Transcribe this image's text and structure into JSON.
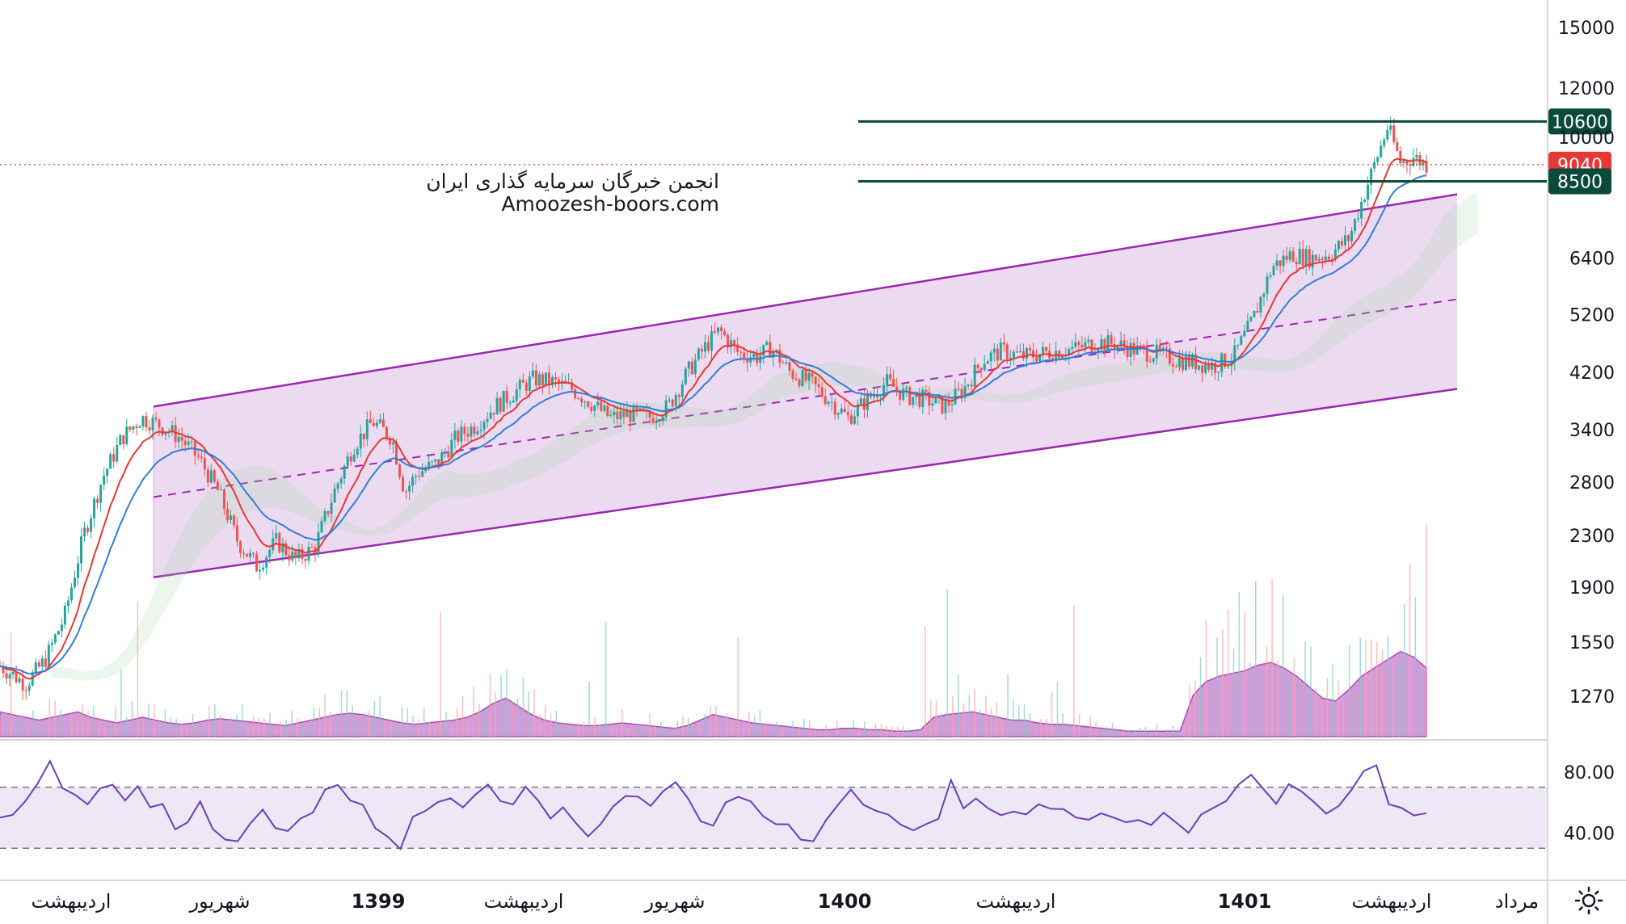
{
  "watermark": {
    "line1": "انجمن خبرگان سرمایه گذاری ایران",
    "line2": "Amoozesh-boors.com"
  },
  "icons": {
    "settings": "sun-settings-icon"
  },
  "colors": {
    "channel_fill": "#e9d3ee",
    "channel_line": "#9c27b0",
    "candle_up": "#26a69a",
    "candle_down": "#ef5350",
    "ma_fast": "#e53935",
    "ma_slow": "#2f7fd8",
    "level_line": "#0b4a3a",
    "price_line": "#e53935",
    "rsi_line": "#6a3fb5",
    "rsi_band": "#ede7f6",
    "volume_area": "#c679cd"
  },
  "chart_data": [
    {
      "type": "candlestick",
      "y_scale": "log",
      "y_ticks": [
        "15000",
        "12000",
        "10000",
        "6400",
        "5200",
        "4200",
        "3400",
        "2800",
        "2300",
        "1900",
        "1550",
        "1270"
      ],
      "x_labels": [
        "اردیبهشت",
        "شهریور",
        "1399",
        "اردیبهشت",
        "شهریور",
        "1400",
        "اردیبهشت",
        "1401",
        "اردیبهشت",
        "مرداد"
      ],
      "price_levels": [
        {
          "label": "10600",
          "value": 10600,
          "style": "horizontal-line"
        },
        {
          "label": "9040",
          "value": 9040,
          "style": "last-price"
        },
        {
          "label": "8500",
          "value": 8500,
          "style": "horizontal-line"
        }
      ],
      "channel": {
        "upper": [
          [
            0.0,
            3700
          ],
          [
            1.0,
            8100
          ]
        ],
        "mid": [
          [
            0.0,
            2650
          ],
          [
            1.0,
            5500
          ]
        ],
        "lower": [
          [
            0.0,
            1970
          ],
          [
            1.0,
            3950
          ]
        ]
      },
      "price_path": [
        [
          0.0,
          1420
        ],
        [
          0.02,
          1330
        ],
        [
          0.035,
          1450
        ],
        [
          0.05,
          1700
        ],
        [
          0.065,
          2300
        ],
        [
          0.08,
          2850
        ],
        [
          0.095,
          3300
        ],
        [
          0.11,
          3550
        ],
        [
          0.125,
          3450
        ],
        [
          0.14,
          3300
        ],
        [
          0.155,
          3050
        ],
        [
          0.17,
          2700
        ],
        [
          0.185,
          2250
        ],
        [
          0.2,
          2050
        ],
        [
          0.215,
          2250
        ],
        [
          0.23,
          2100
        ],
        [
          0.245,
          2200
        ],
        [
          0.26,
          2700
        ],
        [
          0.275,
          3200
        ],
        [
          0.29,
          3500
        ],
        [
          0.305,
          3300
        ],
        [
          0.315,
          2700
        ],
        [
          0.325,
          2900
        ],
        [
          0.34,
          3000
        ],
        [
          0.355,
          3300
        ],
        [
          0.37,
          3450
        ],
        [
          0.385,
          3700
        ],
        [
          0.4,
          3900
        ],
        [
          0.415,
          4100
        ],
        [
          0.43,
          4050
        ],
        [
          0.445,
          3950
        ],
        [
          0.46,
          3750
        ],
        [
          0.475,
          3550
        ],
        [
          0.49,
          3600
        ],
        [
          0.505,
          3550
        ],
        [
          0.52,
          3700
        ],
        [
          0.535,
          4200
        ],
        [
          0.55,
          4650
        ],
        [
          0.56,
          4900
        ],
        [
          0.575,
          4500
        ],
        [
          0.59,
          4450
        ],
        [
          0.6,
          4600
        ],
        [
          0.615,
          4200
        ],
        [
          0.63,
          4050
        ],
        [
          0.645,
          3800
        ],
        [
          0.66,
          3550
        ],
        [
          0.675,
          3800
        ],
        [
          0.69,
          4050
        ],
        [
          0.705,
          3850
        ],
        [
          0.72,
          3800
        ],
        [
          0.735,
          3700
        ],
        [
          0.75,
          3950
        ],
        [
          0.765,
          4400
        ],
        [
          0.78,
          4550
        ],
        [
          0.795,
          4450
        ],
        [
          0.81,
          4500
        ],
        [
          0.825,
          4550
        ],
        [
          0.84,
          4600
        ],
        [
          0.855,
          4700
        ],
        [
          0.87,
          4650
        ],
        [
          0.885,
          4550
        ],
        [
          0.9,
          4500
        ],
        [
          0.915,
          4400
        ],
        [
          0.93,
          4350
        ],
        [
          0.945,
          4300
        ],
        [
          0.96,
          4450
        ],
        [
          0.975,
          5100
        ],
        [
          0.99,
          6200
        ],
        [
          1.005,
          6500
        ],
        [
          1.02,
          6400
        ],
        [
          1.035,
          6500
        ],
        [
          1.05,
          6900
        ],
        [
          1.065,
          8500
        ],
        [
          1.08,
          10400
        ],
        [
          1.09,
          9100
        ],
        [
          1.1,
          9300
        ],
        [
          1.11,
          9040
        ]
      ]
    },
    {
      "type": "line",
      "name": "RSI",
      "y_ticks": [
        "80.00",
        "40.00"
      ],
      "bands": [
        70,
        30
      ],
      "values": [
        48,
        52,
        60,
        72,
        86,
        70,
        65,
        58,
        72,
        74,
        60,
        68,
        55,
        60,
        42,
        50,
        58,
        44,
        38,
        32,
        46,
        55,
        42,
        40,
        48,
        52,
        70,
        74,
        62,
        58,
        46,
        40,
        32,
        48,
        56,
        62,
        64,
        58,
        66,
        72,
        60,
        56,
        68,
        60,
        50,
        54,
        44,
        40,
        48,
        56,
        64,
        62,
        58,
        70,
        74,
        62,
        50,
        46,
        60,
        66,
        58,
        50,
        46,
        44,
        36,
        34,
        50,
        60,
        66,
        58,
        54,
        50,
        46,
        40,
        44,
        52,
        76,
        58,
        60,
        56,
        52,
        54,
        50,
        56,
        58,
        54,
        52,
        50,
        52,
        50,
        48,
        46,
        46,
        52,
        44,
        42,
        50,
        58,
        62,
        74,
        80,
        70,
        62,
        74,
        68,
        58,
        52,
        60,
        70,
        78,
        82,
        60,
        56,
        54,
        52
      ]
    },
    {
      "type": "area",
      "name": "Volume",
      "values": [
        18,
        16,
        14,
        12,
        14,
        16,
        18,
        14,
        12,
        10,
        12,
        14,
        12,
        10,
        9,
        10,
        12,
        13,
        12,
        11,
        10,
        9,
        8,
        10,
        12,
        14,
        16,
        17,
        16,
        14,
        12,
        10,
        9,
        10,
        11,
        12,
        14,
        18,
        24,
        28,
        22,
        16,
        12,
        10,
        9,
        8,
        8,
        9,
        10,
        9,
        8,
        7,
        6,
        8,
        12,
        16,
        14,
        12,
        10,
        9,
        8,
        7,
        6,
        5,
        5,
        6,
        6,
        5,
        5,
        4,
        4,
        5,
        14,
        16,
        17,
        18,
        16,
        14,
        12,
        12,
        10,
        9,
        9,
        8,
        7,
        6,
        5,
        4,
        4,
        4,
        4,
        4,
        30,
        40,
        44,
        46,
        48,
        52,
        54,
        50,
        44,
        36,
        28,
        26,
        34,
        44,
        50,
        56,
        62,
        58,
        50
      ]
    }
  ]
}
